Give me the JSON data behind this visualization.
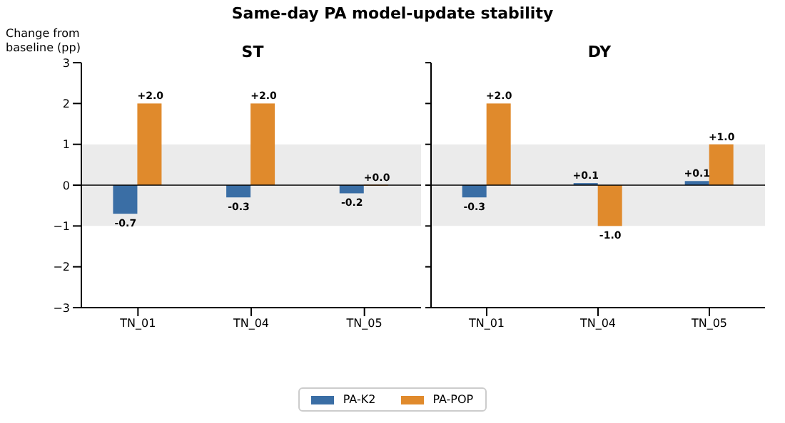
{
  "chart_data": [
    {
      "type": "bar",
      "title": "Same-day PA model-update stability",
      "subtitle": "ST",
      "ylabel": "Change from baseline (pp)",
      "categories": [
        "TN_01",
        "TN_04",
        "TN_05"
      ],
      "series": [
        {
          "name": "PA-K2",
          "color": "#3a6ea5",
          "values": [
            -0.7,
            -0.3,
            -0.2
          ],
          "value_labels": [
            "-0.7",
            "-0.3",
            "-0.2"
          ]
        },
        {
          "name": "PA-POP",
          "color": "#e08a2c",
          "values": [
            2.0,
            2.0,
            0.0
          ],
          "value_labels": [
            "+2.0",
            "+2.0",
            "+0.0"
          ]
        }
      ],
      "ylim": [
        -3,
        3
      ],
      "yticks": [
        -3,
        -2,
        -1,
        0,
        1,
        2,
        3
      ],
      "grid": false,
      "legend": "bottom",
      "bands": [
        {
          "axis": "y",
          "from": -1,
          "to": 1,
          "color": "#ebebeb"
        }
      ],
      "ref_lines": [
        {
          "axis": "y",
          "value": 0,
          "color": "#000000"
        }
      ]
    },
    {
      "type": "bar",
      "subtitle": "DY",
      "categories": [
        "TN_01",
        "TN_04",
        "TN_05"
      ],
      "series": [
        {
          "color": "#3a6ea5",
          "values": [
            -0.3,
            0.05,
            0.1
          ],
          "value_labels": [
            "-0.3",
            "+0.1",
            "+0.1"
          ]
        },
        {
          "color": "#e08a2c",
          "values": [
            2.0,
            -1.0,
            1.0
          ],
          "value_labels": [
            "+2.0",
            "-1.0",
            "+1.0"
          ]
        }
      ],
      "ylim": [
        -3,
        3
      ],
      "yticks": [
        -3,
        -2,
        -1,
        0,
        1,
        2,
        3
      ],
      "grid": false,
      "tick_labels": "x",
      "bands": [
        {
          "axis": "y",
          "from": -1,
          "to": 1,
          "color": "#ebebeb"
        }
      ],
      "ref_lines": [
        {
          "axis": "y",
          "value": 0,
          "color": "#000000"
        }
      ]
    }
  ]
}
